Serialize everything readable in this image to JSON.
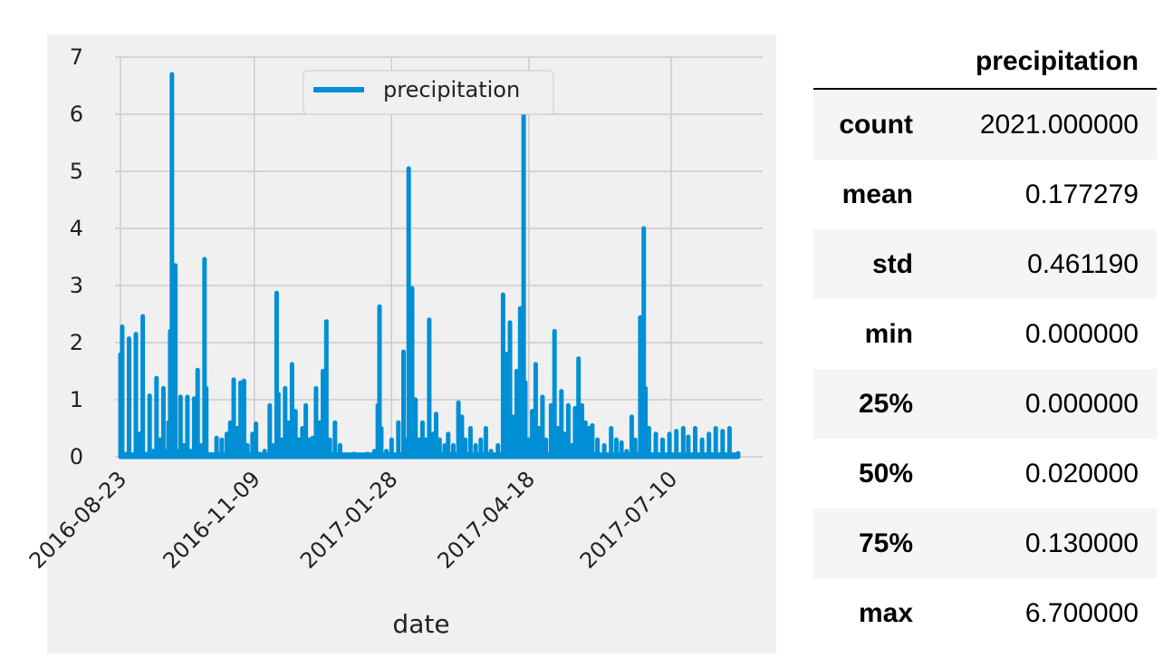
{
  "chart_data": {
    "type": "line",
    "xlabel": "date",
    "ylabel": "",
    "ylim": [
      0,
      7
    ],
    "yticks": [
      0,
      1,
      2,
      3,
      4,
      5,
      6,
      7
    ],
    "xticks": [
      "2016-08-23",
      "2016-11-09",
      "2017-01-28",
      "2017-04-18",
      "2017-07-10"
    ],
    "grid": true,
    "legend_position": "upper-center",
    "series": [
      {
        "name": "precipitation",
        "color": "#008fd5",
        "points": [
          [
            "2016-08-23",
            1.79
          ],
          [
            "2016-08-24",
            2.28
          ],
          [
            "2016-08-26",
            0.05
          ],
          [
            "2016-08-28",
            2.07
          ],
          [
            "2016-08-30",
            0.02
          ],
          [
            "2016-09-01",
            2.15
          ],
          [
            "2016-09-03",
            0.4
          ],
          [
            "2016-09-05",
            2.46
          ],
          [
            "2016-09-07",
            0.05
          ],
          [
            "2016-09-09",
            1.07
          ],
          [
            "2016-09-11",
            0.1
          ],
          [
            "2016-09-13",
            1.38
          ],
          [
            "2016-09-15",
            0.3
          ],
          [
            "2016-09-17",
            1.2
          ],
          [
            "2016-09-19",
            0.1
          ],
          [
            "2016-09-20",
            0.6
          ],
          [
            "2016-09-21",
            2.2
          ],
          [
            "2016-09-22",
            6.7
          ],
          [
            "2016-09-23",
            1.2
          ],
          [
            "2016-09-24",
            3.35
          ],
          [
            "2016-09-25",
            0.1
          ],
          [
            "2016-09-27",
            1.05
          ],
          [
            "2016-09-29",
            0.2
          ],
          [
            "2016-10-01",
            1.05
          ],
          [
            "2016-10-03",
            0.1
          ],
          [
            "2016-10-05",
            1.02
          ],
          [
            "2016-10-07",
            1.52
          ],
          [
            "2016-10-09",
            0.2
          ],
          [
            "2016-10-11",
            3.46
          ],
          [
            "2016-10-12",
            1.2
          ],
          [
            "2016-10-13",
            0.05
          ],
          [
            "2016-10-16",
            0.03
          ],
          [
            "2016-10-18",
            0.33
          ],
          [
            "2016-10-21",
            0.3
          ],
          [
            "2016-10-24",
            0.4
          ],
          [
            "2016-10-26",
            0.6
          ],
          [
            "2016-10-28",
            1.35
          ],
          [
            "2016-10-30",
            0.5
          ],
          [
            "2016-11-01",
            1.3
          ],
          [
            "2016-11-03",
            1.33
          ],
          [
            "2016-11-05",
            0.2
          ],
          [
            "2016-11-08",
            0.4
          ],
          [
            "2016-11-10",
            0.58
          ],
          [
            "2016-11-12",
            0.05
          ],
          [
            "2016-11-15",
            0.1
          ],
          [
            "2016-11-18",
            0.9
          ],
          [
            "2016-11-20",
            0.2
          ],
          [
            "2016-11-22",
            2.87
          ],
          [
            "2016-11-23",
            1.1
          ],
          [
            "2016-11-25",
            0.3
          ],
          [
            "2016-11-27",
            1.2
          ],
          [
            "2016-11-29",
            0.6
          ],
          [
            "2016-12-01",
            1.62
          ],
          [
            "2016-12-03",
            0.8
          ],
          [
            "2016-12-05",
            0.3
          ],
          [
            "2016-12-07",
            0.5
          ],
          [
            "2016-12-09",
            0.9
          ],
          [
            "2016-12-11",
            0.3
          ],
          [
            "2016-12-13",
            0.33
          ],
          [
            "2016-12-15",
            1.2
          ],
          [
            "2016-12-17",
            0.6
          ],
          [
            "2016-12-19",
            1.5
          ],
          [
            "2016-12-21",
            2.37
          ],
          [
            "2016-12-23",
            0.3
          ],
          [
            "2016-12-26",
            0.6
          ],
          [
            "2016-12-29",
            0.2
          ],
          [
            "2017-01-02",
            0.02
          ],
          [
            "2017-01-06",
            0.05
          ],
          [
            "2017-01-10",
            0.03
          ],
          [
            "2017-01-14",
            0.05
          ],
          [
            "2017-01-18",
            0.1
          ],
          [
            "2017-01-20",
            0.9
          ],
          [
            "2017-01-21",
            2.63
          ],
          [
            "2017-01-22",
            0.5
          ],
          [
            "2017-01-25",
            0.1
          ],
          [
            "2017-01-28",
            0.3
          ],
          [
            "2017-02-01",
            0.6
          ],
          [
            "2017-02-04",
            1.84
          ],
          [
            "2017-02-06",
            0.3
          ],
          [
            "2017-02-07",
            5.05
          ],
          [
            "2017-02-08",
            1.9
          ],
          [
            "2017-02-09",
            2.95
          ],
          [
            "2017-02-11",
            1.0
          ],
          [
            "2017-02-13",
            0.3
          ],
          [
            "2017-02-15",
            0.6
          ],
          [
            "2017-02-17",
            0.3
          ],
          [
            "2017-02-19",
            2.4
          ],
          [
            "2017-02-21",
            0.4
          ],
          [
            "2017-02-23",
            0.75
          ],
          [
            "2017-02-25",
            0.3
          ],
          [
            "2017-02-28",
            0.2
          ],
          [
            "2017-03-02",
            0.4
          ],
          [
            "2017-03-05",
            0.2
          ],
          [
            "2017-03-08",
            0.95
          ],
          [
            "2017-03-10",
            0.7
          ],
          [
            "2017-03-12",
            0.3
          ],
          [
            "2017-03-15",
            0.5
          ],
          [
            "2017-03-18",
            0.2
          ],
          [
            "2017-03-21",
            0.3
          ],
          [
            "2017-03-24",
            0.5
          ],
          [
            "2017-03-27",
            0.1
          ],
          [
            "2017-03-31",
            0.2
          ],
          [
            "2017-04-03",
            2.84
          ],
          [
            "2017-04-05",
            1.8
          ],
          [
            "2017-04-07",
            2.35
          ],
          [
            "2017-04-09",
            0.7
          ],
          [
            "2017-04-11",
            1.5
          ],
          [
            "2017-04-13",
            2.6
          ],
          [
            "2017-04-14",
            0.4
          ],
          [
            "2017-04-15",
            6.25
          ],
          [
            "2017-04-16",
            1.3
          ],
          [
            "2017-04-18",
            0.3
          ],
          [
            "2017-04-20",
            0.8
          ],
          [
            "2017-04-22",
            1.62
          ],
          [
            "2017-04-24",
            0.5
          ],
          [
            "2017-04-26",
            1.05
          ],
          [
            "2017-04-28",
            0.3
          ],
          [
            "2017-05-01",
            0.9
          ],
          [
            "2017-05-03",
            2.2
          ],
          [
            "2017-05-05",
            0.5
          ],
          [
            "2017-05-07",
            1.15
          ],
          [
            "2017-05-09",
            0.4
          ],
          [
            "2017-05-11",
            0.9
          ],
          [
            "2017-05-13",
            0.2
          ],
          [
            "2017-05-15",
            0.85
          ],
          [
            "2017-05-17",
            1.72
          ],
          [
            "2017-05-19",
            0.9
          ],
          [
            "2017-05-21",
            0.6
          ],
          [
            "2017-05-23",
            0.5
          ],
          [
            "2017-05-25",
            0.55
          ],
          [
            "2017-05-28",
            0.3
          ],
          [
            "2017-06-01",
            0.2
          ],
          [
            "2017-06-05",
            0.5
          ],
          [
            "2017-06-08",
            0.3
          ],
          [
            "2017-06-11",
            0.25
          ],
          [
            "2017-06-14",
            0.1
          ],
          [
            "2017-06-17",
            0.7
          ],
          [
            "2017-06-19",
            0.3
          ],
          [
            "2017-06-22",
            2.44
          ],
          [
            "2017-06-23",
            0.8
          ],
          [
            "2017-06-24",
            4.0
          ],
          [
            "2017-06-25",
            1.2
          ],
          [
            "2017-06-27",
            0.5
          ],
          [
            "2017-07-01",
            0.4
          ],
          [
            "2017-07-05",
            0.3
          ],
          [
            "2017-07-09",
            0.4
          ],
          [
            "2017-07-13",
            0.45
          ],
          [
            "2017-07-17",
            0.5
          ],
          [
            "2017-07-20",
            0.35
          ],
          [
            "2017-07-24",
            0.5
          ],
          [
            "2017-07-28",
            0.3
          ],
          [
            "2017-08-01",
            0.4
          ],
          [
            "2017-08-05",
            0.5
          ],
          [
            "2017-08-09",
            0.45
          ],
          [
            "2017-08-13",
            0.5
          ],
          [
            "2017-08-18",
            0.06
          ]
        ]
      }
    ]
  },
  "stats_table": {
    "column_header": "precipitation",
    "rows": [
      {
        "label": "count",
        "value": "2021.000000"
      },
      {
        "label": "mean",
        "value": "0.177279"
      },
      {
        "label": "std",
        "value": "0.461190"
      },
      {
        "label": "min",
        "value": "0.000000"
      },
      {
        "label": "25%",
        "value": "0.000000"
      },
      {
        "label": "50%",
        "value": "0.020000"
      },
      {
        "label": "75%",
        "value": "0.130000"
      },
      {
        "label": "max",
        "value": "6.700000"
      }
    ]
  }
}
